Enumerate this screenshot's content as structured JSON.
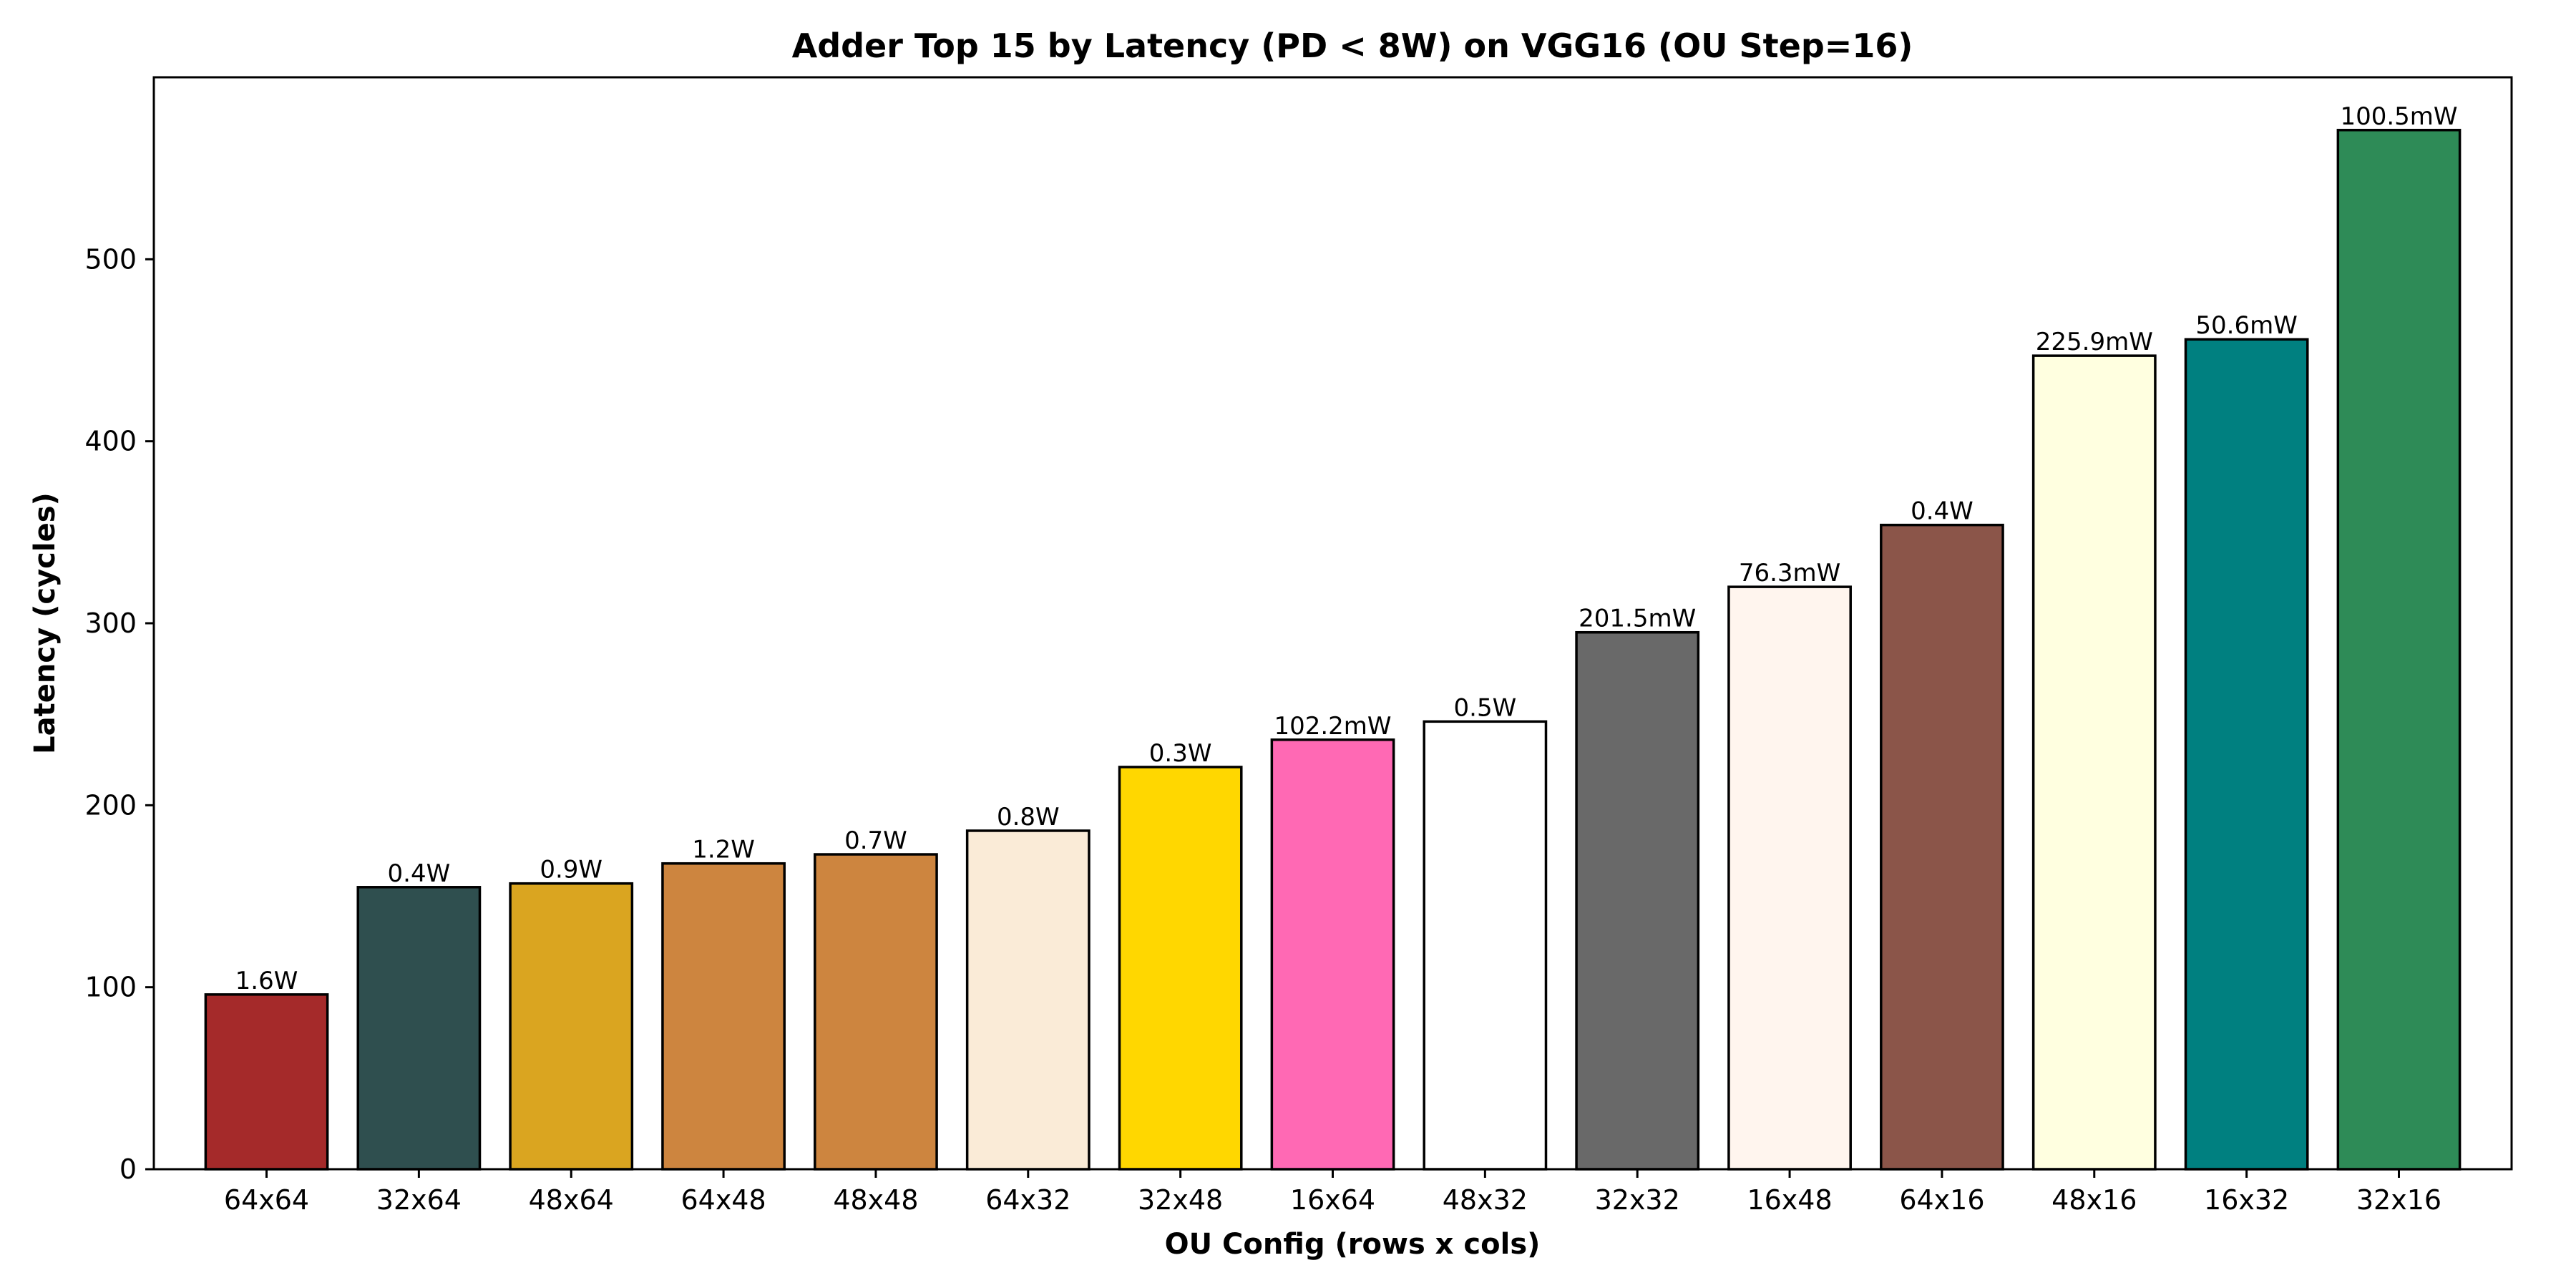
{
  "chart_data": {
    "type": "bar",
    "title": "Adder Top 15 by Latency (PD < 8W) on VGG16 (OU Step=16)",
    "xlabel": "OU Config (rows x cols)",
    "ylabel": "Latency (cycles)",
    "ylim": [
      0,
      600
    ],
    "yticks": [
      0,
      100,
      200,
      300,
      400,
      500
    ],
    "grid": false,
    "categories": [
      "64x64",
      "32x64",
      "48x64",
      "64x48",
      "48x48",
      "64x32",
      "32x48",
      "16x64",
      "48x32",
      "32x32",
      "16x48",
      "64x16",
      "48x16",
      "16x32",
      "32x16"
    ],
    "values": [
      96,
      155,
      157,
      168,
      173,
      186,
      221,
      236,
      246,
      295,
      320,
      354,
      447,
      456,
      571
    ],
    "data_labels": [
      "1.6W",
      "0.4W",
      "0.9W",
      "1.2W",
      "0.7W",
      "0.8W",
      "0.3W",
      "102.2mW",
      "0.5W",
      "201.5mW",
      "76.3mW",
      "0.4W",
      "225.9mW",
      "50.6mW",
      "100.5mW"
    ],
    "colors": [
      "#a52a2a",
      "#2f4f4f",
      "#daa520",
      "#cd853f",
      "#cd853f",
      "#faebd7",
      "#ffd700",
      "#ff69b4",
      "#ffffff",
      "#696969",
      "#fff5ee",
      "#8b5549",
      "#ffffe0",
      "#008080",
      "#2e8b57"
    ]
  }
}
